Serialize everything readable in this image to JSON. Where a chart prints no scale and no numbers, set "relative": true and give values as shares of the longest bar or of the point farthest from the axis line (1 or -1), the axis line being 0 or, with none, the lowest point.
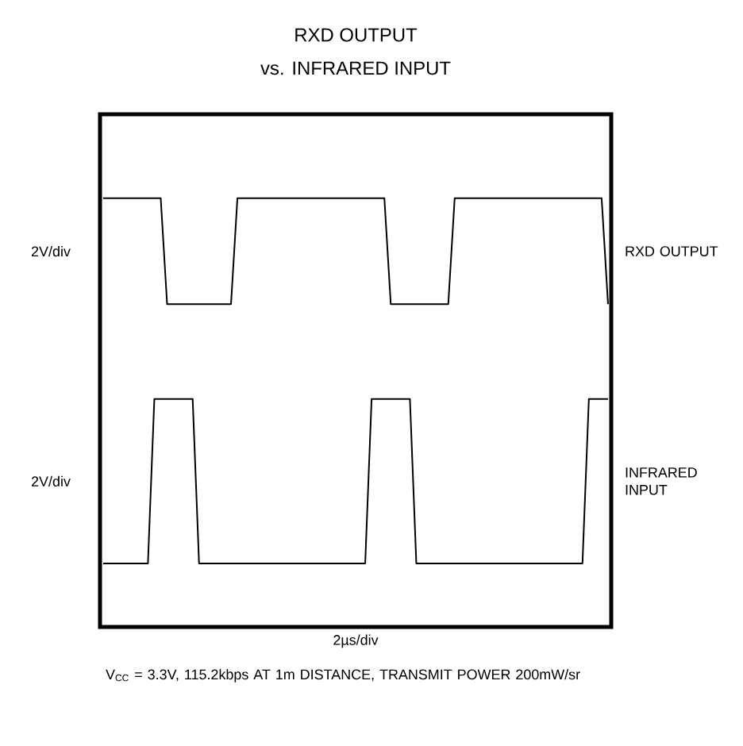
{
  "chart_data": {
    "type": "line",
    "title": "RXD OUTPUT",
    "subtitle": "vs.  INFRARED INPUT",
    "relative": true,
    "categories": [
      null,
      null,
      null,
      null,
      null,
      null,
      null,
      null,
      null,
      null,
      null,
      null,
      null,
      null,
      null,
      null,
      null,
      null,
      null,
      null,
      null,
      null,
      null,
      null,
      null,
      null,
      null,
      null,
      null,
      null,
      null,
      null,
      null,
      null,
      null,
      null,
      null,
      null,
      null,
      null,
      null,
      null,
      null,
      null,
      null,
      null,
      null,
      null,
      null,
      null,
      null,
      null,
      null,
      null,
      null,
      null,
      null,
      null,
      null,
      null,
      null,
      null,
      null,
      null,
      null,
      null,
      null,
      null,
      null,
      null,
      null,
      null,
      null,
      null,
      null,
      null,
      null,
      null,
      null,
      null
    ],
    "series": [
      {
        "name": "RXD OUTPUT",
        "color": "#000000",
        "values": [
          1,
          1,
          1,
          1,
          1,
          1,
          1,
          1,
          1,
          1,
          0.71,
          0.71,
          0.71,
          0.71,
          0.71,
          0.71,
          0.71,
          0.71,
          0.71,
          0.71,
          0.71,
          1,
          1,
          1,
          1,
          1,
          1,
          1,
          1,
          1,
          1,
          1,
          1,
          1,
          1,
          1,
          1,
          1,
          1,
          1,
          1,
          1,
          1,
          1,
          1,
          0.71,
          0.71,
          0.71,
          0.71,
          0.71,
          0.71,
          0.71,
          0.71,
          0.71,
          0.71,
          1,
          1,
          1,
          1,
          1,
          1,
          1,
          1,
          1,
          1,
          1,
          1,
          1,
          1,
          1,
          1,
          1,
          1,
          1,
          1,
          1,
          1,
          1,
          1,
          0.71
        ]
      },
      {
        "name": "INFRARED INPUT",
        "color": "#000000",
        "values": [
          0,
          0,
          0,
          0,
          0,
          0,
          0,
          0,
          0.45,
          0.45,
          0.45,
          0.45,
          0.45,
          0.45,
          0.45,
          0,
          0,
          0,
          0,
          0,
          0,
          0,
          0,
          0,
          0,
          0,
          0,
          0,
          0,
          0,
          0,
          0,
          0,
          0,
          0,
          0,
          0,
          0,
          0,
          0,
          0,
          0,
          0.45,
          0.45,
          0.45,
          0.45,
          0.45,
          0.45,
          0.45,
          0,
          0,
          0,
          0,
          0,
          0,
          0,
          0,
          0,
          0,
          0,
          0,
          0,
          0,
          0,
          0,
          0,
          0,
          0,
          0,
          0,
          0,
          0,
          0,
          0,
          0,
          0,
          0.45,
          0.45,
          0.45,
          0.45
        ]
      }
    ],
    "annotations": [
      "2V/div",
      "2V/div",
      "2µs/div",
      "V$_{CC}$ = 3.3V, 115.2kbps AT 1m DISTANCE, TRANSMIT POWER 200mW/sr"
    ]
  }
}
